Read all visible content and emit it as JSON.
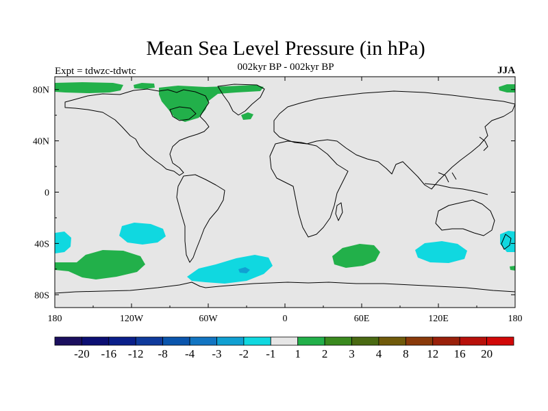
{
  "title": "Mean Sea Level Pressure (in hPa)",
  "subtitle": "002kyr BP - 002kyr BP",
  "experiment_label": "Expt = tdwzc-tdwtc",
  "season": "JJA",
  "chart_data": {
    "type": "map",
    "projection": "cylindrical-equidistant",
    "lon_range": [
      -180,
      180
    ],
    "lat_range": [
      -90,
      90
    ],
    "x_ticks": [
      {
        "lon": -180,
        "label": "180"
      },
      {
        "lon": -120,
        "label": "120W"
      },
      {
        "lon": -60,
        "label": "60W"
      },
      {
        "lon": 0,
        "label": "0"
      },
      {
        "lon": 60,
        "label": "60E"
      },
      {
        "lon": 120,
        "label": "120E"
      },
      {
        "lon": 180,
        "label": "180"
      }
    ],
    "y_ticks": [
      {
        "lat": 80,
        "label": "80N"
      },
      {
        "lat": 40,
        "label": "40N"
      },
      {
        "lat": 0,
        "label": "0"
      },
      {
        "lat": -40,
        "label": "40S"
      },
      {
        "lat": -80,
        "label": "80S"
      }
    ],
    "colorbar": {
      "boundary_labels": [
        "-20",
        "-16",
        "-12",
        "-8",
        "-4",
        "-3",
        "-2",
        "-1",
        "1",
        "2",
        "3",
        "4",
        "8",
        "12",
        "16",
        "20"
      ],
      "colors": [
        "#1b0f5e",
        "#0c0f73",
        "#0a1f8a",
        "#0f3a9c",
        "#0a55ad",
        "#1275c2",
        "#10a0d2",
        "#10d8e0",
        "#e6e6e6",
        "#22b04a",
        "#3a8a1e",
        "#4a6a12",
        "#705a0a",
        "#8a3a0a",
        "#9a200a",
        "#b8100a",
        "#d20808"
      ]
    },
    "anomaly_regions": [
      {
        "name": "north-atlantic-west",
        "sign": "positive",
        "class": "1 to 2",
        "lon": [
          -180,
          -122
        ],
        "lat": [
          79,
          85
        ]
      },
      {
        "name": "greenland-arctic",
        "sign": "positive",
        "class": "1 to 2",
        "lon": [
          -100,
          -15
        ],
        "lat": [
          62,
          86
        ]
      },
      {
        "name": "arctic-east",
        "sign": "positive",
        "class": "1 to 2",
        "lon": [
          165,
          180
        ],
        "lat": [
          79,
          84
        ]
      },
      {
        "name": "south-pacific-subtropical",
        "sign": "negative",
        "class": "-2 to -1",
        "lon": [
          -132,
          -103
        ],
        "lat": [
          -39,
          -25
        ]
      },
      {
        "name": "south-pacific-west-edge",
        "sign": "negative",
        "class": "-2 to -1",
        "lon": [
          -180,
          -168
        ],
        "lat": [
          -45,
          -29
        ]
      },
      {
        "name": "south-pacific-midlat",
        "sign": "positive",
        "class": "1 to 2",
        "lon": [
          -180,
          -110
        ],
        "lat": [
          -68,
          -46
        ]
      },
      {
        "name": "south-atlantic-midlat",
        "sign": "negative",
        "class": "-2 to -1",
        "lon": [
          -75,
          -10
        ],
        "lat": [
          -68,
          -50
        ]
      },
      {
        "name": "south-atlantic-core",
        "sign": "negative",
        "class": "-3 to -2",
        "lon": [
          -37,
          -29
        ],
        "lat": [
          -61,
          -57
        ]
      },
      {
        "name": "south-indian-west",
        "sign": "positive",
        "class": "1 to 2",
        "lon": [
          35,
          75
        ],
        "lat": [
          -57,
          -41
        ]
      },
      {
        "name": "south-indian-east",
        "sign": "negative",
        "class": "-2 to -1",
        "lon": [
          102,
          142
        ],
        "lat": [
          -53,
          -38
        ]
      },
      {
        "name": "tasman",
        "sign": "negative",
        "class": "-2 to -1",
        "lon": [
          168,
          180
        ],
        "lat": [
          -46,
          -30
        ]
      }
    ]
  }
}
